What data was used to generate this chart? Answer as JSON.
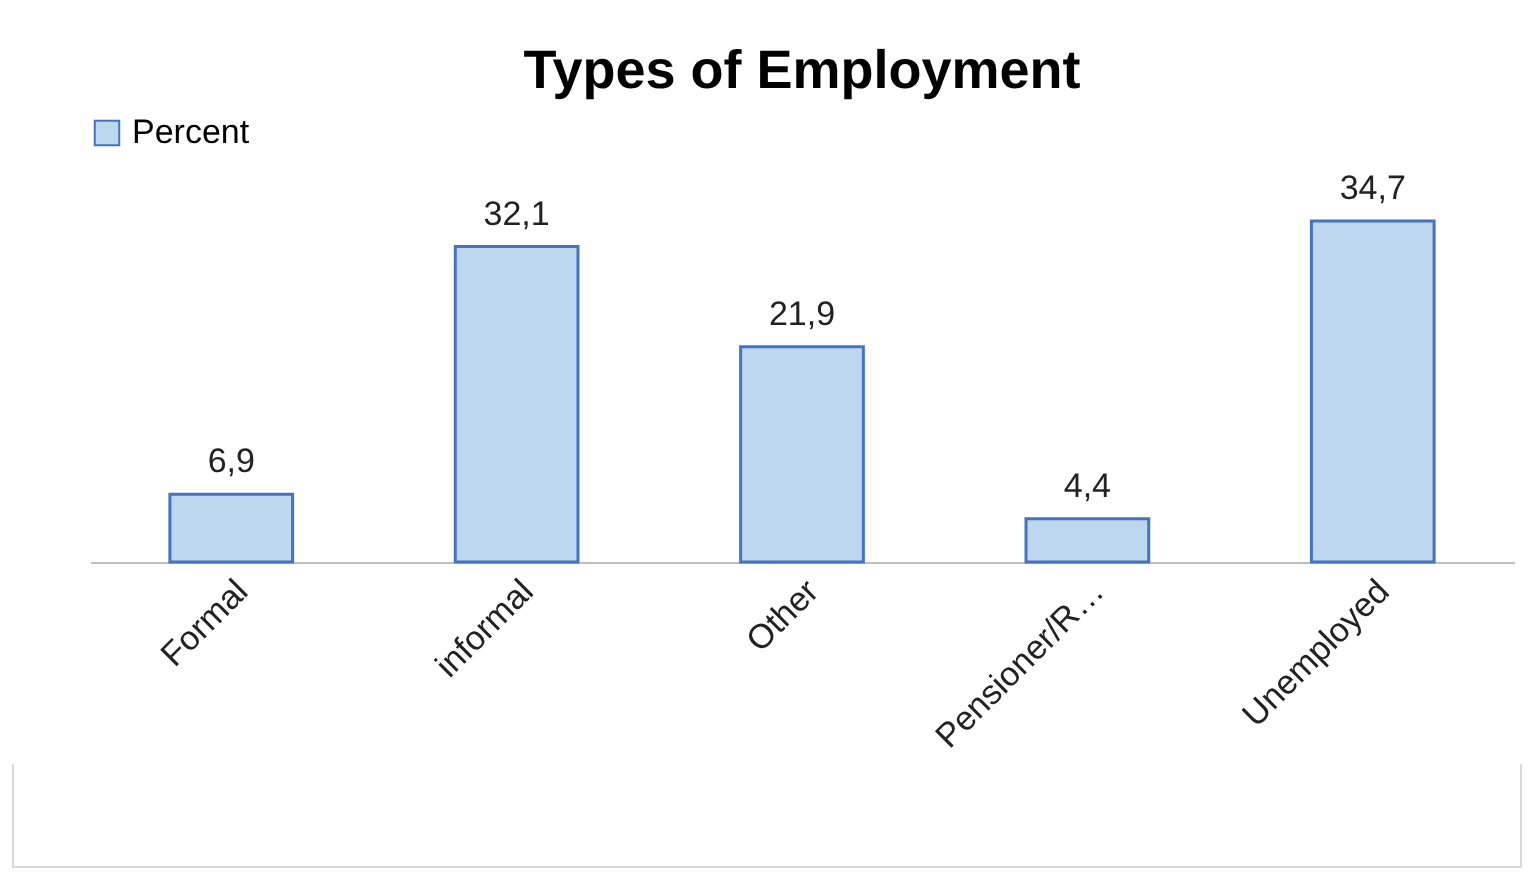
{
  "chart_data": {
    "type": "bar",
    "title": "Types of Employment",
    "categories": [
      "Formal",
      "informal",
      "Other",
      "Pensioner/R…",
      "Unemployed"
    ],
    "series": [
      {
        "name": "Percent",
        "color": "#bdd7ee",
        "values": [
          6.9,
          32.1,
          21.9,
          4.4,
          34.7
        ],
        "value_labels": [
          "6,9",
          "32,1",
          "21,9",
          "4,4",
          "34,7"
        ]
      }
    ],
    "legend": "top",
    "grid": false
  }
}
